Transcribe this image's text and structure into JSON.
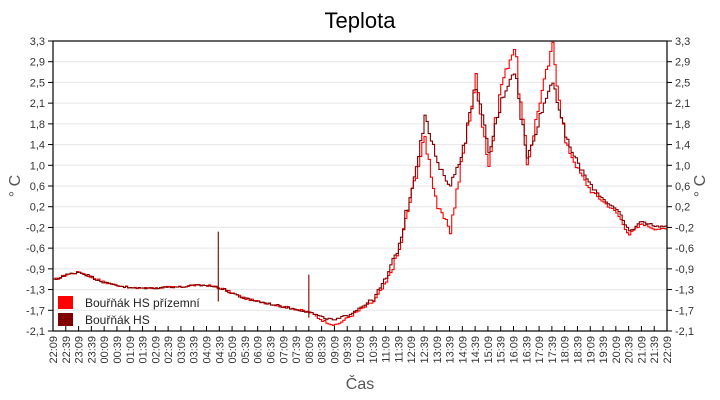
{
  "chart_data": {
    "type": "line",
    "title": "Teplota",
    "xlabel": "Čas",
    "ylabel": "° C",
    "ylabel_right": "° C",
    "ylim": [
      -2.1,
      3.3
    ],
    "y_ticks": [
      "3,3",
      "2,9",
      "2,5",
      "2,1",
      "1,8",
      "1,4",
      "1,0",
      "0,6",
      "0,2",
      "-0,2",
      "-0,6",
      "-0,9",
      "-1,3",
      "-1,7",
      "-2,1"
    ],
    "grid": "horizontal",
    "legend_position": "lower-left inside",
    "x": [
      "22:09",
      "22:39",
      "23:09",
      "23:39",
      "00:09",
      "00:39",
      "01:09",
      "01:39",
      "02:09",
      "02:39",
      "03:09",
      "03:39",
      "04:09",
      "04:39",
      "05:09",
      "05:39",
      "06:09",
      "06:39",
      "07:09",
      "07:39",
      "08:09",
      "08:39",
      "09:09",
      "09:39",
      "10:09",
      "10:39",
      "11:09",
      "11:39",
      "12:09",
      "12:39",
      "13:09",
      "13:39",
      "14:09",
      "14:39",
      "15:09",
      "15:39",
      "16:09",
      "16:39",
      "17:09",
      "17:39",
      "18:09",
      "18:39",
      "19:09",
      "19:39",
      "20:09",
      "20:39",
      "21:09",
      "21:39",
      "22:09"
    ],
    "series": [
      {
        "name": "Bouřňák HS přízemní",
        "color": "#ff0000",
        "values": [
          -1.15,
          -1.05,
          -1.0,
          -1.1,
          -1.2,
          -1.25,
          -1.3,
          -1.3,
          -1.3,
          -1.28,
          -1.28,
          -1.25,
          -1.25,
          -1.3,
          -1.4,
          -1.5,
          -1.55,
          -1.6,
          -1.65,
          -1.7,
          -1.75,
          -1.9,
          -2.0,
          -1.85,
          -1.7,
          -1.55,
          -1.2,
          -0.6,
          0.5,
          1.5,
          0.2,
          -0.2,
          1.2,
          2.6,
          1.0,
          2.5,
          3.2,
          1.0,
          2.2,
          3.2,
          1.4,
          0.9,
          0.5,
          0.3,
          0.1,
          -0.3,
          -0.1,
          -0.2,
          -0.2
        ]
      },
      {
        "name": "Bouřňák HS",
        "color": "#800000",
        "values": [
          -1.15,
          -1.05,
          -1.0,
          -1.1,
          -1.2,
          -1.25,
          -1.3,
          -1.3,
          -1.3,
          -1.28,
          -1.28,
          -1.25,
          -1.25,
          -1.3,
          -1.4,
          -1.5,
          -1.55,
          -1.6,
          -1.65,
          -1.7,
          -1.75,
          -1.85,
          -1.9,
          -1.8,
          -1.65,
          -1.5,
          -1.1,
          -0.5,
          0.6,
          1.9,
          1.0,
          0.6,
          1.3,
          2.5,
          1.2,
          2.2,
          2.8,
          1.1,
          1.9,
          2.6,
          1.5,
          1.0,
          0.6,
          0.35,
          0.15,
          -0.25,
          -0.05,
          -0.15,
          -0.15
        ]
      }
    ]
  },
  "legend": {
    "items": [
      {
        "label": "Bouřňák HS přízemní",
        "color": "#ff0000"
      },
      {
        "label": "Bouřňák HS",
        "color": "#800000"
      }
    ]
  }
}
